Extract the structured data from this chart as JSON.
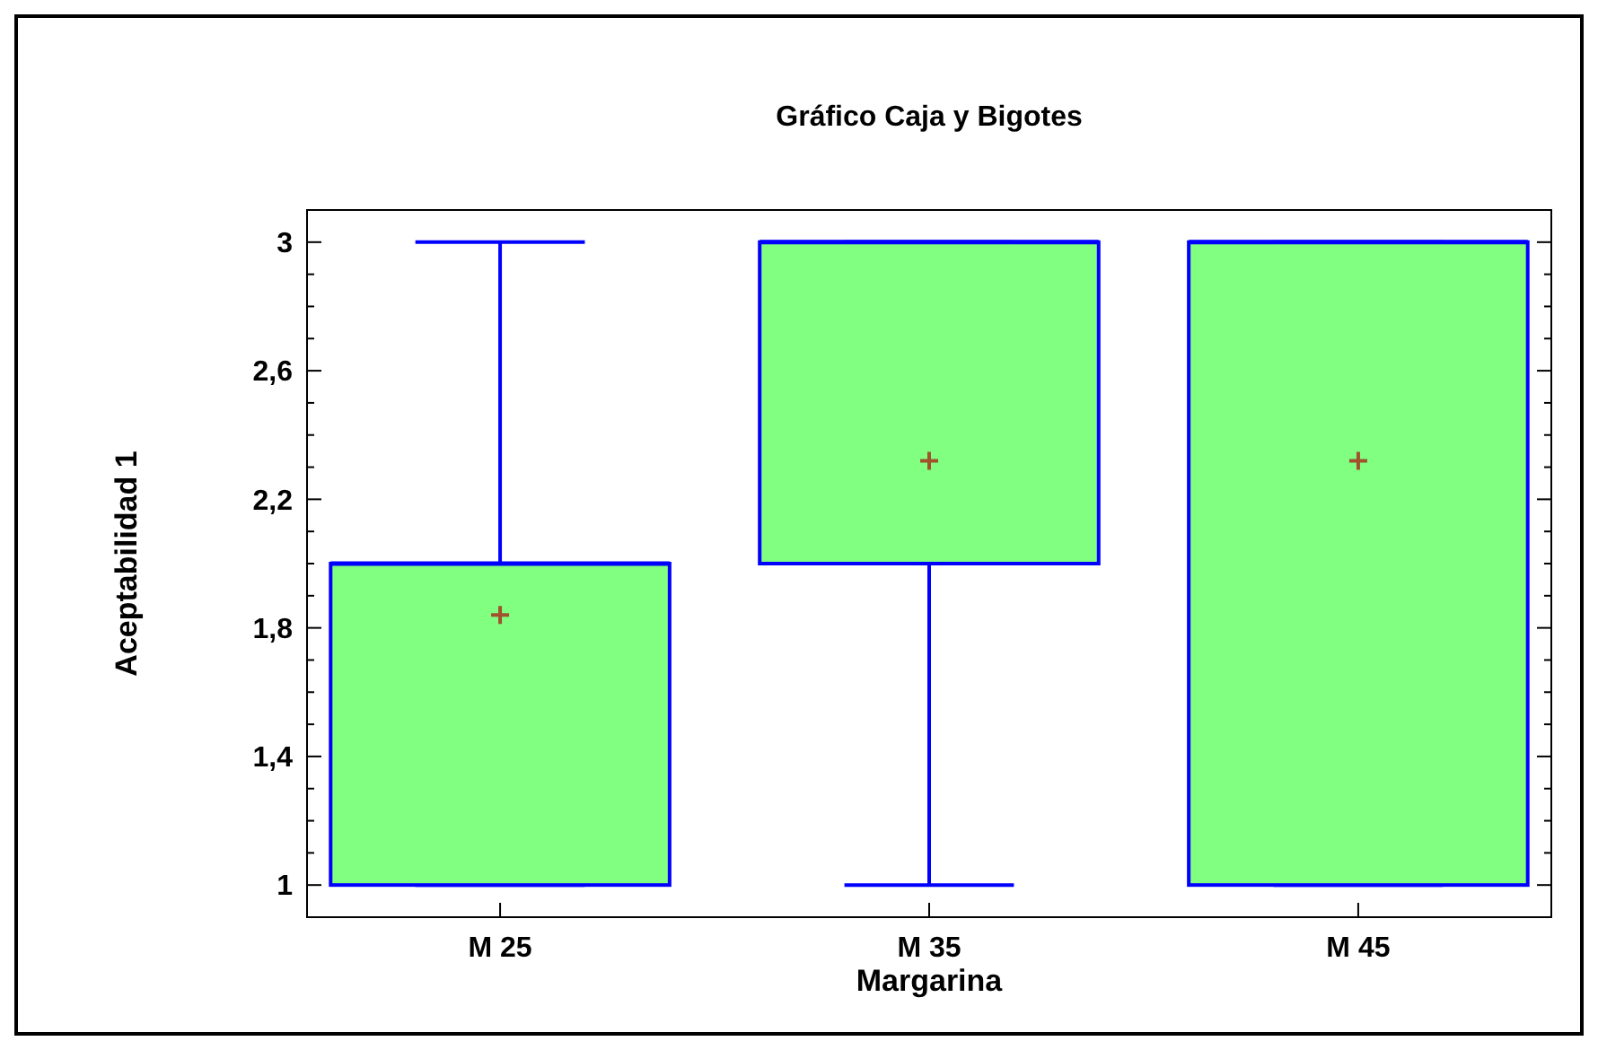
{
  "chart_data": {
    "type": "box",
    "title": "Gráfico Caja y Bigotes",
    "xlabel": "Margarina",
    "ylabel": "Aceptabilidad 1",
    "categories": [
      "M 25",
      "M 35",
      "M 45"
    ],
    "color": "#80ff80",
    "marker": "cross",
    "boxes": [
      {
        "low": 1,
        "q1": 1,
        "median": 2,
        "q3": 2,
        "high": 3,
        "mean": 1.84
      },
      {
        "low": 1,
        "q1": 2,
        "median": 3,
        "q3": 3,
        "high": 3,
        "mean": 2.32
      },
      {
        "low": 1,
        "q1": 1,
        "median": 3,
        "q3": 3,
        "high": 3,
        "mean": 2.32
      }
    ],
    "ylim": [
      0.9,
      3.1
    ],
    "yticks": [
      {
        "value": 1,
        "label": "1"
      },
      {
        "value": 1.1,
        "label": null
      },
      {
        "value": 1.2,
        "label": null
      },
      {
        "value": 1.3,
        "label": null
      },
      {
        "value": 1.4,
        "label": "1,4"
      },
      {
        "value": 1.5,
        "label": null
      },
      {
        "value": 1.6,
        "label": null
      },
      {
        "value": 1.7,
        "label": null
      },
      {
        "value": 1.8,
        "label": "1,8"
      },
      {
        "value": 1.9,
        "label": null
      },
      {
        "value": 2,
        "label": null
      },
      {
        "value": 2.1,
        "label": null
      },
      {
        "value": 2.2,
        "label": "2,2"
      },
      {
        "value": 2.3,
        "label": null
      },
      {
        "value": 2.4,
        "label": null
      },
      {
        "value": 2.5,
        "label": null
      },
      {
        "value": 2.6,
        "label": "2,6"
      },
      {
        "value": 2.7,
        "label": null
      },
      {
        "value": 2.8,
        "label": null
      },
      {
        "value": 2.9,
        "label": null
      },
      {
        "value": 3,
        "label": "3"
      }
    ],
    "grid": false
  }
}
